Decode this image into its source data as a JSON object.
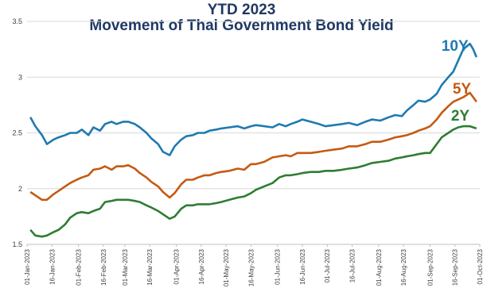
{
  "chart_data": {
    "type": "line",
    "title": "YTD 2023",
    "subtitle": "Movement of Thai Government Bond Yield",
    "xlabel": "",
    "ylabel": "",
    "ylim": [
      1.5,
      3.5
    ],
    "yticks": [
      1.5,
      2,
      2.5,
      3,
      3.5
    ],
    "ytick_labels": [
      "1.5",
      "2",
      "2.5",
      "3",
      "3.5"
    ],
    "xlim": [
      "2023-01-01",
      "2023-10-01"
    ],
    "xticks": [
      "2023-01-01",
      "2023-01-16",
      "2023-02-01",
      "2023-02-16",
      "2023-03-01",
      "2023-03-16",
      "2023-04-01",
      "2023-04-16",
      "2023-05-01",
      "2023-05-16",
      "2023-06-01",
      "2023-06-16",
      "2023-07-01",
      "2023-07-16",
      "2023-08-01",
      "2023-08-16",
      "2023-09-01",
      "2023-09-16",
      "2023-10-01"
    ],
    "xtick_labels": [
      "01-Jan-2023",
      "16-Jan-2023",
      "01-Feb-2023",
      "16-Feb-2023",
      "01-Mar-2023",
      "16-Mar-2023",
      "01-Apr-2023",
      "16-Apr-2023",
      "01-May-2023",
      "16-May-2023",
      "01-Jun-2023",
      "16-Jun-2023",
      "01-Jul-2023",
      "16-Jul-2023",
      "01-Aug-2023",
      "16-Aug-2023",
      "01-Sep-2023",
      "16-Sep-2023",
      "01-Oct-2023"
    ],
    "grid": true,
    "legend": "inline labels at right end of lines",
    "series": [
      {
        "name": "10Y",
        "color": "#1f7ab0",
        "label_color": "#1f7ab0",
        "points": [
          [
            "2023-01-03",
            2.64
          ],
          [
            "2023-01-06",
            2.56
          ],
          [
            "2023-01-10",
            2.48
          ],
          [
            "2023-01-13",
            2.4
          ],
          [
            "2023-01-17",
            2.44
          ],
          [
            "2023-01-20",
            2.46
          ],
          [
            "2023-01-24",
            2.48
          ],
          [
            "2023-01-27",
            2.5
          ],
          [
            "2023-01-31",
            2.5
          ],
          [
            "2023-02-03",
            2.53
          ],
          [
            "2023-02-07",
            2.48
          ],
          [
            "2023-02-10",
            2.55
          ],
          [
            "2023-02-14",
            2.52
          ],
          [
            "2023-02-17",
            2.58
          ],
          [
            "2023-02-21",
            2.6
          ],
          [
            "2023-02-24",
            2.58
          ],
          [
            "2023-02-28",
            2.6
          ],
          [
            "2023-03-03",
            2.6
          ],
          [
            "2023-03-07",
            2.58
          ],
          [
            "2023-03-10",
            2.55
          ],
          [
            "2023-03-14",
            2.5
          ],
          [
            "2023-03-17",
            2.45
          ],
          [
            "2023-03-21",
            2.4
          ],
          [
            "2023-03-24",
            2.33
          ],
          [
            "2023-03-28",
            2.3
          ],
          [
            "2023-03-31",
            2.38
          ],
          [
            "2023-04-04",
            2.44
          ],
          [
            "2023-04-07",
            2.47
          ],
          [
            "2023-04-11",
            2.48
          ],
          [
            "2023-04-14",
            2.5
          ],
          [
            "2023-04-18",
            2.5
          ],
          [
            "2023-04-21",
            2.52
          ],
          [
            "2023-04-25",
            2.53
          ],
          [
            "2023-04-28",
            2.54
          ],
          [
            "2023-05-03",
            2.55
          ],
          [
            "2023-05-08",
            2.56
          ],
          [
            "2023-05-12",
            2.54
          ],
          [
            "2023-05-16",
            2.56
          ],
          [
            "2023-05-19",
            2.57
          ],
          [
            "2023-05-24",
            2.56
          ],
          [
            "2023-05-29",
            2.55
          ],
          [
            "2023-06-02",
            2.58
          ],
          [
            "2023-06-06",
            2.56
          ],
          [
            "2023-06-09",
            2.58
          ],
          [
            "2023-06-13",
            2.6
          ],
          [
            "2023-06-16",
            2.62
          ],
          [
            "2023-06-21",
            2.6
          ],
          [
            "2023-06-26",
            2.58
          ],
          [
            "2023-06-30",
            2.56
          ],
          [
            "2023-07-05",
            2.57
          ],
          [
            "2023-07-10",
            2.58
          ],
          [
            "2023-07-14",
            2.59
          ],
          [
            "2023-07-19",
            2.57
          ],
          [
            "2023-07-24",
            2.6
          ],
          [
            "2023-07-28",
            2.62
          ],
          [
            "2023-08-02",
            2.61
          ],
          [
            "2023-08-07",
            2.64
          ],
          [
            "2023-08-11",
            2.66
          ],
          [
            "2023-08-15",
            2.65
          ],
          [
            "2023-08-18",
            2.7
          ],
          [
            "2023-08-22",
            2.75
          ],
          [
            "2023-08-25",
            2.79
          ],
          [
            "2023-08-29",
            2.78
          ],
          [
            "2023-09-01",
            2.8
          ],
          [
            "2023-09-05",
            2.85
          ],
          [
            "2023-09-08",
            2.93
          ],
          [
            "2023-09-12",
            3.0
          ],
          [
            "2023-09-15",
            3.05
          ],
          [
            "2023-09-18",
            3.15
          ],
          [
            "2023-09-21",
            3.25
          ],
          [
            "2023-09-25",
            3.3
          ],
          [
            "2023-09-27",
            3.25
          ],
          [
            "2023-09-29",
            3.18
          ]
        ]
      },
      {
        "name": "5Y",
        "color": "#c55a11",
        "label_color": "#c55a11",
        "points": [
          [
            "2023-01-03",
            1.97
          ],
          [
            "2023-01-06",
            1.94
          ],
          [
            "2023-01-10",
            1.9
          ],
          [
            "2023-01-13",
            1.9
          ],
          [
            "2023-01-17",
            1.95
          ],
          [
            "2023-01-20",
            1.98
          ],
          [
            "2023-01-24",
            2.02
          ],
          [
            "2023-01-27",
            2.05
          ],
          [
            "2023-01-31",
            2.08
          ],
          [
            "2023-02-03",
            2.1
          ],
          [
            "2023-02-07",
            2.12
          ],
          [
            "2023-02-10",
            2.17
          ],
          [
            "2023-02-14",
            2.18
          ],
          [
            "2023-02-17",
            2.2
          ],
          [
            "2023-02-21",
            2.17
          ],
          [
            "2023-02-24",
            2.2
          ],
          [
            "2023-02-28",
            2.2
          ],
          [
            "2023-03-03",
            2.21
          ],
          [
            "2023-03-07",
            2.18
          ],
          [
            "2023-03-10",
            2.14
          ],
          [
            "2023-03-14",
            2.1
          ],
          [
            "2023-03-17",
            2.06
          ],
          [
            "2023-03-21",
            2.02
          ],
          [
            "2023-03-24",
            1.97
          ],
          [
            "2023-03-28",
            1.92
          ],
          [
            "2023-03-31",
            1.96
          ],
          [
            "2023-04-04",
            2.04
          ],
          [
            "2023-04-07",
            2.08
          ],
          [
            "2023-04-11",
            2.08
          ],
          [
            "2023-04-14",
            2.1
          ],
          [
            "2023-04-18",
            2.12
          ],
          [
            "2023-04-21",
            2.12
          ],
          [
            "2023-04-25",
            2.14
          ],
          [
            "2023-04-28",
            2.15
          ],
          [
            "2023-05-03",
            2.16
          ],
          [
            "2023-05-08",
            2.18
          ],
          [
            "2023-05-12",
            2.17
          ],
          [
            "2023-05-16",
            2.22
          ],
          [
            "2023-05-19",
            2.22
          ],
          [
            "2023-05-24",
            2.24
          ],
          [
            "2023-05-29",
            2.28
          ],
          [
            "2023-06-02",
            2.29
          ],
          [
            "2023-06-06",
            2.3
          ],
          [
            "2023-06-09",
            2.29
          ],
          [
            "2023-06-13",
            2.32
          ],
          [
            "2023-06-16",
            2.32
          ],
          [
            "2023-06-21",
            2.32
          ],
          [
            "2023-06-26",
            2.33
          ],
          [
            "2023-06-30",
            2.34
          ],
          [
            "2023-07-05",
            2.35
          ],
          [
            "2023-07-10",
            2.36
          ],
          [
            "2023-07-14",
            2.38
          ],
          [
            "2023-07-19",
            2.38
          ],
          [
            "2023-07-24",
            2.4
          ],
          [
            "2023-07-28",
            2.42
          ],
          [
            "2023-08-02",
            2.42
          ],
          [
            "2023-08-07",
            2.44
          ],
          [
            "2023-08-11",
            2.46
          ],
          [
            "2023-08-15",
            2.47
          ],
          [
            "2023-08-18",
            2.48
          ],
          [
            "2023-08-22",
            2.5
          ],
          [
            "2023-08-25",
            2.52
          ],
          [
            "2023-08-29",
            2.54
          ],
          [
            "2023-09-01",
            2.56
          ],
          [
            "2023-09-05",
            2.62
          ],
          [
            "2023-09-08",
            2.68
          ],
          [
            "2023-09-12",
            2.74
          ],
          [
            "2023-09-15",
            2.78
          ],
          [
            "2023-09-18",
            2.8
          ],
          [
            "2023-09-21",
            2.82
          ],
          [
            "2023-09-25",
            2.86
          ],
          [
            "2023-09-27",
            2.82
          ],
          [
            "2023-09-29",
            2.78
          ]
        ]
      },
      {
        "name": "2Y",
        "color": "#2e7d32",
        "label_color": "#2e7d32",
        "points": [
          [
            "2023-01-03",
            1.63
          ],
          [
            "2023-01-06",
            1.58
          ],
          [
            "2023-01-10",
            1.57
          ],
          [
            "2023-01-13",
            1.58
          ],
          [
            "2023-01-17",
            1.61
          ],
          [
            "2023-01-20",
            1.63
          ],
          [
            "2023-01-24",
            1.68
          ],
          [
            "2023-01-27",
            1.74
          ],
          [
            "2023-01-31",
            1.78
          ],
          [
            "2023-02-03",
            1.79
          ],
          [
            "2023-02-07",
            1.78
          ],
          [
            "2023-02-10",
            1.8
          ],
          [
            "2023-02-14",
            1.82
          ],
          [
            "2023-02-17",
            1.88
          ],
          [
            "2023-02-21",
            1.89
          ],
          [
            "2023-02-24",
            1.9
          ],
          [
            "2023-02-28",
            1.9
          ],
          [
            "2023-03-03",
            1.9
          ],
          [
            "2023-03-07",
            1.89
          ],
          [
            "2023-03-10",
            1.88
          ],
          [
            "2023-03-14",
            1.85
          ],
          [
            "2023-03-17",
            1.83
          ],
          [
            "2023-03-21",
            1.8
          ],
          [
            "2023-03-24",
            1.77
          ],
          [
            "2023-03-28",
            1.73
          ],
          [
            "2023-03-31",
            1.75
          ],
          [
            "2023-04-04",
            1.82
          ],
          [
            "2023-04-07",
            1.85
          ],
          [
            "2023-04-11",
            1.85
          ],
          [
            "2023-04-14",
            1.86
          ],
          [
            "2023-04-18",
            1.86
          ],
          [
            "2023-04-21",
            1.86
          ],
          [
            "2023-04-25",
            1.87
          ],
          [
            "2023-04-28",
            1.88
          ],
          [
            "2023-05-03",
            1.9
          ],
          [
            "2023-05-08",
            1.92
          ],
          [
            "2023-05-12",
            1.93
          ],
          [
            "2023-05-16",
            1.96
          ],
          [
            "2023-05-19",
            1.99
          ],
          [
            "2023-05-24",
            2.02
          ],
          [
            "2023-05-29",
            2.05
          ],
          [
            "2023-06-02",
            2.1
          ],
          [
            "2023-06-06",
            2.12
          ],
          [
            "2023-06-09",
            2.12
          ],
          [
            "2023-06-13",
            2.13
          ],
          [
            "2023-06-16",
            2.14
          ],
          [
            "2023-06-21",
            2.15
          ],
          [
            "2023-06-26",
            2.15
          ],
          [
            "2023-06-30",
            2.16
          ],
          [
            "2023-07-05",
            2.16
          ],
          [
            "2023-07-10",
            2.17
          ],
          [
            "2023-07-14",
            2.18
          ],
          [
            "2023-07-19",
            2.19
          ],
          [
            "2023-07-24",
            2.21
          ],
          [
            "2023-07-28",
            2.23
          ],
          [
            "2023-08-02",
            2.24
          ],
          [
            "2023-08-07",
            2.25
          ],
          [
            "2023-08-11",
            2.27
          ],
          [
            "2023-08-15",
            2.28
          ],
          [
            "2023-08-18",
            2.29
          ],
          [
            "2023-08-22",
            2.3
          ],
          [
            "2023-08-25",
            2.31
          ],
          [
            "2023-08-29",
            2.32
          ],
          [
            "2023-09-01",
            2.32
          ],
          [
            "2023-09-05",
            2.4
          ],
          [
            "2023-09-08",
            2.46
          ],
          [
            "2023-09-12",
            2.5
          ],
          [
            "2023-09-15",
            2.53
          ],
          [
            "2023-09-18",
            2.55
          ],
          [
            "2023-09-21",
            2.56
          ],
          [
            "2023-09-25",
            2.56
          ],
          [
            "2023-09-27",
            2.55
          ],
          [
            "2023-09-29",
            2.54
          ]
        ]
      }
    ]
  }
}
